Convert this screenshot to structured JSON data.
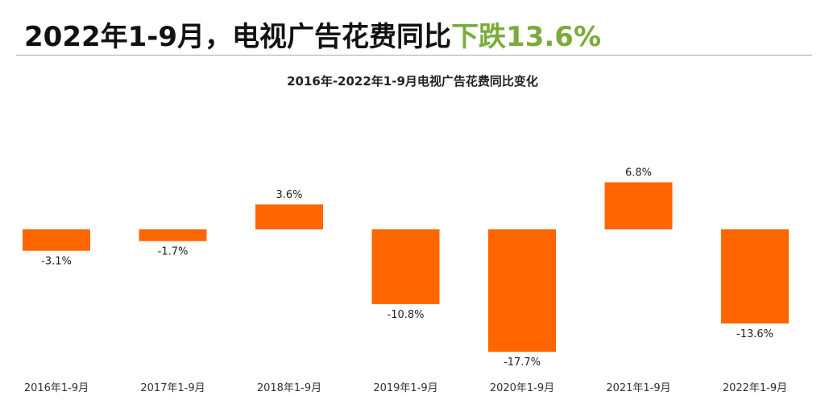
{
  "headline": {
    "prefix": "2022年1-9月，电视广告花费同比",
    "highlight": "下跌13.6%",
    "highlight_color": "#7aab3b"
  },
  "chart_data": {
    "type": "bar",
    "title": "2016年-2022年1-9月电视广告花费同比变化",
    "categories": [
      "2016年1-9月",
      "2017年1-9月",
      "2018年1-9月",
      "2019年1-9月",
      "2020年1-9月",
      "2021年1-9月",
      "2022年1-9月"
    ],
    "values": [
      -3.1,
      -1.7,
      3.6,
      -10.8,
      -17.7,
      6.8,
      -13.6
    ],
    "data_labels": [
      "-3.1%",
      "-1.7%",
      "3.6%",
      "-10.8%",
      "-17.7%",
      "6.8%",
      "-13.6%"
    ],
    "unit": "%",
    "bar_color": "#ff6600",
    "xlabel": "",
    "ylabel": "",
    "grid": false,
    "legend": "none"
  }
}
